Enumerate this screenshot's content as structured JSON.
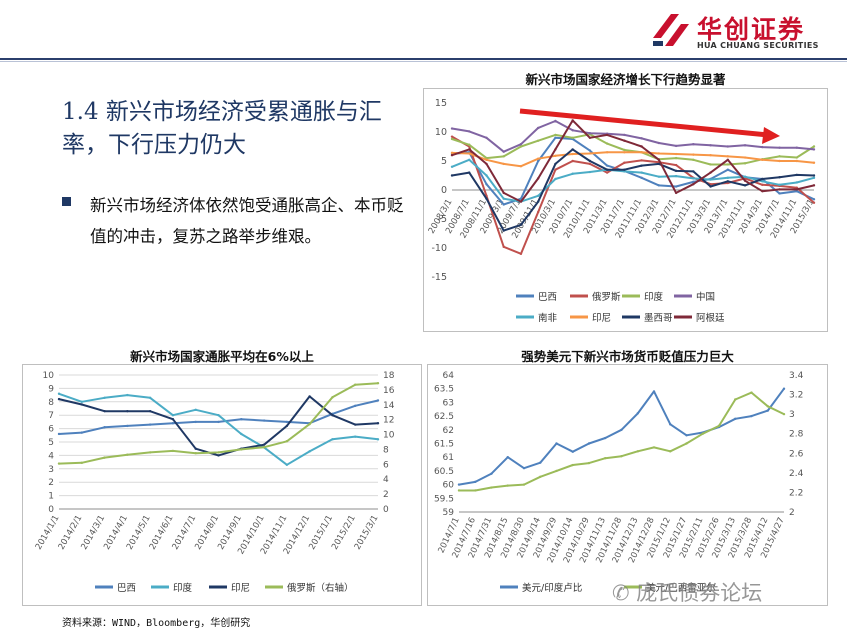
{
  "logo": {
    "cn": "华创证券",
    "en": "HUA CHUANG SECURITIES",
    "colors": {
      "red": "#c8102e",
      "dark": "#333333"
    }
  },
  "title": "1.4 新兴市场经济受累通胀与汇率，下行压力仍大",
  "bullet": "新兴市场经济体依然饱受通胀高企、本币贬值的冲击，复苏之路举步维艰。",
  "source": "资料来源：WIND，Bloomberg，华创研究",
  "watermark": "庞氏债券论坛",
  "chart_data": [
    {
      "id": "gdp",
      "type": "line",
      "title": "新兴市场国家经济增长下行趋势显著",
      "x": [
        "2008/3/1",
        "2008/7/1",
        "2008/11/1",
        "2009/3/1",
        "2009/7/1",
        "2009/11/1",
        "2010/3/1",
        "2010/7/1",
        "2010/11/1",
        "2011/3/1",
        "2011/7/1",
        "2011/11/1",
        "2012/3/1",
        "2012/7/1",
        "2012/11/1",
        "2013/3/1",
        "2013/7/1",
        "2013/11/1",
        "2014/3/1",
        "2014/7/1",
        "2014/11/1",
        "2015/3/1"
      ],
      "ylim": [
        -15,
        15
      ],
      "yticks": [
        15,
        10,
        5,
        0,
        -5,
        -10,
        -15
      ],
      "series": [
        {
          "name": "巴西",
          "color": "#4f81bd",
          "values": [
            6.2,
            6.5,
            1.0,
            -2.5,
            -1.5,
            5.0,
            9.0,
            8.8,
            6.8,
            4.2,
            3.3,
            2.1,
            0.8,
            0.6,
            1.4,
            1.9,
            3.5,
            2.2,
            1.9,
            -0.6,
            -0.2,
            -1.6
          ]
        },
        {
          "name": "俄罗斯",
          "color": "#c0504d",
          "values": [
            9.2,
            7.5,
            -1.0,
            -9.8,
            -11.0,
            -3.8,
            3.5,
            5.0,
            4.5,
            3.0,
            4.7,
            5.1,
            4.8,
            4.3,
            2.1,
            1.0,
            1.2,
            2.0,
            0.9,
            0.7,
            0.4,
            -2.2
          ]
        },
        {
          "name": "印度",
          "color": "#9bbb59",
          "values": [
            8.8,
            7.8,
            5.5,
            5.8,
            7.5,
            8.5,
            9.5,
            9.0,
            9.6,
            8.0,
            6.9,
            6.5,
            5.3,
            5.5,
            5.2,
            4.4,
            4.4,
            4.6,
            5.3,
            5.8,
            5.6,
            7.5
          ]
        },
        {
          "name": "中国",
          "color": "#8064a2",
          "values": [
            10.6,
            10.1,
            9.0,
            6.6,
            7.9,
            10.7,
            11.9,
            10.3,
            9.8,
            9.7,
            9.5,
            8.9,
            8.1,
            7.6,
            7.9,
            7.7,
            7.5,
            7.7,
            7.4,
            7.3,
            7.3,
            7.0
          ]
        },
        {
          "name": "南非",
          "color": "#4bacc6",
          "values": [
            4.0,
            5.2,
            2.5,
            -1.5,
            -2.0,
            -1.0,
            1.9,
            2.8,
            3.1,
            3.5,
            3.2,
            3.0,
            2.3,
            2.4,
            2.0,
            1.8,
            2.1,
            2.3,
            1.5,
            0.9,
            1.3,
            2.1
          ]
        },
        {
          "name": "印尼",
          "color": "#f79646",
          "values": [
            6.4,
            6.3,
            5.2,
            4.5,
            4.1,
            5.4,
            5.9,
            6.2,
            6.3,
            6.5,
            6.5,
            6.5,
            6.3,
            6.2,
            6.1,
            6.0,
            5.8,
            5.6,
            5.2,
            5.0,
            5.0,
            4.7
          ]
        },
        {
          "name": "墨西哥",
          "color": "#1f3864",
          "values": [
            2.5,
            3.0,
            -1.5,
            -7.0,
            -6.0,
            -2.0,
            4.5,
            7.0,
            5.0,
            3.5,
            3.5,
            4.2,
            4.5,
            3.3,
            3.2,
            0.6,
            1.5,
            0.8,
            1.9,
            2.2,
            2.6,
            2.5
          ]
        },
        {
          "name": "阿根廷",
          "color": "#7f2938",
          "values": [
            6.0,
            7.0,
            4.5,
            -0.5,
            -2.0,
            2.0,
            7.0,
            12.0,
            9.0,
            9.5,
            8.5,
            7.5,
            5.2,
            -0.5,
            1.0,
            3.0,
            5.2,
            1.6,
            -0.2,
            0.1,
            0.1,
            0.8
          ]
        }
      ],
      "annotation": "downtrend arrow"
    },
    {
      "id": "cpi",
      "type": "line",
      "title": "新兴市场国家通胀平均在6%以上",
      "x": [
        "2014/1/1",
        "2014/2/1",
        "2014/3/1",
        "2014/4/1",
        "2014/5/1",
        "2014/6/1",
        "2014/7/1",
        "2014/8/1",
        "2014/9/1",
        "2014/10/1",
        "2014/11/1",
        "2014/12/1",
        "2015/1/1",
        "2015/2/1",
        "2015/3/1"
      ],
      "ylim": [
        0,
        10
      ],
      "yticks": [
        0,
        1,
        2,
        3,
        4,
        5,
        6,
        7,
        8,
        9,
        10
      ],
      "y2lim": [
        0,
        18
      ],
      "y2ticks": [
        0,
        2,
        4,
        6,
        8,
        10,
        12,
        14,
        16,
        18
      ],
      "series": [
        {
          "name": "巴西",
          "color": "#4f81bd",
          "axis": "left",
          "values": [
            5.6,
            5.7,
            6.1,
            6.2,
            6.3,
            6.4,
            6.5,
            6.5,
            6.7,
            6.6,
            6.5,
            6.4,
            7.1,
            7.7,
            8.1
          ]
        },
        {
          "name": "印度",
          "color": "#4bacc6",
          "axis": "left",
          "values": [
            8.6,
            8.0,
            8.3,
            8.5,
            8.3,
            7.0,
            7.4,
            7.0,
            5.6,
            4.6,
            3.3,
            4.3,
            5.2,
            5.4,
            5.2
          ]
        },
        {
          "name": "印尼",
          "color": "#1f3864",
          "axis": "left",
          "values": [
            8.2,
            7.8,
            7.3,
            7.3,
            7.3,
            6.7,
            4.5,
            4.0,
            4.5,
            4.8,
            6.2,
            8.4,
            7.0,
            6.3,
            6.4
          ]
        },
        {
          "name": "俄罗斯（右轴）",
          "color": "#9bbb59",
          "axis": "right",
          "values": [
            6.1,
            6.2,
            6.9,
            7.3,
            7.6,
            7.8,
            7.5,
            7.6,
            8.0,
            8.3,
            9.1,
            11.4,
            15.0,
            16.7,
            16.9
          ]
        }
      ]
    },
    {
      "id": "fx",
      "type": "line",
      "title": "强势美元下新兴市场货币贬值压力巨大",
      "x": [
        "2014/7/1",
        "2014/7/16",
        "2014/7/31",
        "2014/8/15",
        "2014/8/30",
        "2014/9/14",
        "2014/9/29",
        "2014/10/14",
        "2014/10/29",
        "2014/11/13",
        "2014/11/28",
        "2014/12/13",
        "2014/12/28",
        "2015/1/12",
        "2015/1/27",
        "2015/2/11",
        "2015/2/26",
        "2015/3/13",
        "2015/3/28",
        "2015/4/12",
        "2015/4/27"
      ],
      "ylim": [
        59,
        64
      ],
      "yticks": [
        59,
        59.5,
        60,
        60.5,
        61,
        61.5,
        62,
        62.5,
        63,
        63.5,
        64
      ],
      "y2lim": [
        2,
        3.4
      ],
      "y2ticks": [
        2,
        2.2,
        2.4,
        2.6,
        2.8,
        3,
        3.2,
        3.4
      ],
      "series": [
        {
          "name": "美元/印度卢比",
          "color": "#4f81bd",
          "axis": "left",
          "values": [
            60.0,
            60.1,
            60.4,
            61.0,
            60.6,
            60.8,
            61.5,
            61.2,
            61.5,
            61.7,
            62.0,
            62.6,
            63.4,
            62.2,
            61.8,
            61.9,
            62.1,
            62.4,
            62.5,
            62.7,
            63.5
          ]
        },
        {
          "name": "美元/巴西雷亚尔",
          "color": "#9bbb59",
          "axis": "right",
          "values": [
            2.22,
            2.22,
            2.25,
            2.27,
            2.28,
            2.36,
            2.42,
            2.48,
            2.5,
            2.55,
            2.57,
            2.62,
            2.66,
            2.62,
            2.7,
            2.8,
            2.88,
            3.15,
            3.22,
            3.08,
            3.0
          ]
        }
      ],
      "legend_visible": [
        "美元/印度卢比",
        "美元/巴西雷亚尔"
      ]
    }
  ]
}
